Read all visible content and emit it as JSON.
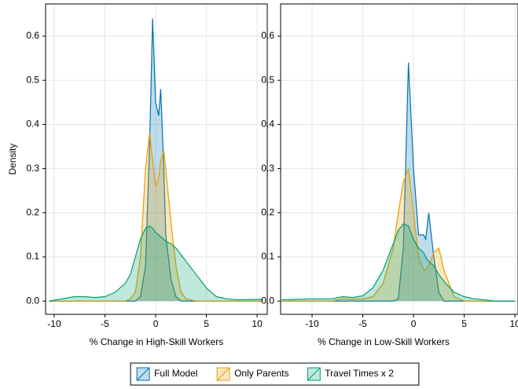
{
  "chart_data": [
    {
      "type": "area",
      "xlabel": "% Change in High-Skill Workers",
      "ylabel": "Density",
      "legend": "bottom",
      "grid": true,
      "xlim": [
        -10.85,
        11
      ],
      "ylim": [
        -0.03,
        0.673
      ],
      "xticks": [
        -10,
        -5,
        0,
        5,
        10
      ],
      "yticks": [
        {
          "value": 0,
          "label": "0.0"
        },
        0.1,
        0.2,
        0.3,
        0.4,
        0.5,
        0.6
      ],
      "x": [
        -10.5,
        -8,
        -7,
        -6,
        -5,
        -4,
        -3,
        -2.5,
        -2,
        -1.5,
        -1,
        -0.6,
        -0.3,
        0,
        0.3,
        0.5,
        0.8,
        1,
        1.5,
        2,
        2.5,
        3,
        4,
        5,
        6,
        7,
        8,
        10.5
      ],
      "series": [
        {
          "name": "Full Model",
          "color": "#0072b2",
          "values": [
            0,
            0,
            0,
            0,
            0,
            0,
            0,
            0,
            0,
            0.01,
            0.08,
            0.35,
            0.64,
            0.45,
            0.42,
            0.48,
            0.3,
            0.15,
            0.05,
            0.01,
            0,
            0,
            0,
            0,
            0,
            0,
            0,
            0
          ]
        },
        {
          "name": "Only Parents",
          "color": "#e69f00",
          "values": [
            0,
            0,
            0,
            0,
            0,
            0,
            0,
            0.005,
            0.02,
            0.1,
            0.3,
            0.38,
            0.32,
            0.26,
            0.28,
            0.32,
            0.34,
            0.3,
            0.18,
            0.08,
            0.02,
            0.005,
            0,
            0,
            0,
            0,
            0,
            0
          ]
        },
        {
          "name": "Travel Times x 2",
          "color": "#009e73",
          "values": [
            0,
            0.01,
            0.01,
            0.008,
            0.01,
            0.02,
            0.04,
            0.06,
            0.1,
            0.14,
            0.165,
            0.17,
            0.165,
            0.155,
            0.15,
            0.145,
            0.14,
            0.135,
            0.13,
            0.12,
            0.105,
            0.09,
            0.06,
            0.03,
            0.01,
            0.005,
            0.003,
            0.004
          ]
        }
      ]
    },
    {
      "type": "area",
      "xlabel": "% Change in Low-Skill Workers",
      "grid": true,
      "xlim": [
        -13.1,
        10.3
      ],
      "ylim": [
        -0.03,
        0.673
      ],
      "xticks": [
        -10,
        -5,
        0,
        5,
        10
      ],
      "yticks": [
        {
          "value": 0,
          "label": "0.0"
        },
        0.1,
        0.2,
        0.3,
        0.4,
        0.5,
        0.6
      ],
      "x": [
        -13,
        -10,
        -8,
        -7,
        -6,
        -5,
        -4,
        -3,
        -2,
        -1.5,
        -1,
        -0.5,
        0,
        0.5,
        1,
        1.2,
        1.5,
        2,
        2.5,
        3,
        4,
        5,
        6,
        7,
        8,
        10
      ],
      "series": [
        {
          "color": "#0072b2",
          "values": [
            0,
            0,
            0,
            0,
            0,
            0,
            0,
            0,
            0,
            0.005,
            0.12,
            0.54,
            0.3,
            0.15,
            0.15,
            0.14,
            0.2,
            0.1,
            0.02,
            0,
            0,
            0,
            0,
            0,
            0,
            0
          ]
        },
        {
          "color": "#e69f00",
          "values": [
            0,
            0,
            0,
            0.005,
            0.004,
            0.005,
            0.01,
            0.04,
            0.12,
            0.2,
            0.27,
            0.3,
            0.2,
            0.1,
            0.07,
            0.07,
            0.08,
            0.11,
            0.12,
            0.07,
            0.01,
            0,
            0,
            0,
            0,
            0
          ]
        },
        {
          "color": "#009e73",
          "values": [
            0.003,
            0.005,
            0.005,
            0.01,
            0.008,
            0.012,
            0.03,
            0.07,
            0.13,
            0.16,
            0.175,
            0.17,
            0.14,
            0.12,
            0.11,
            0.1,
            0.09,
            0.08,
            0.06,
            0.045,
            0.02,
            0.01,
            0.005,
            0.003,
            0,
            0
          ]
        }
      ]
    }
  ]
}
